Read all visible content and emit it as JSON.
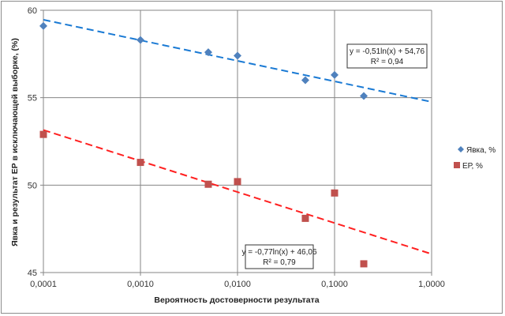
{
  "chart_data": {
    "type": "scatter",
    "xscale": "log",
    "xlim": [
      0.0001,
      1
    ],
    "ylim": [
      45,
      60
    ],
    "xticks": [
      0.0001,
      0.001,
      0.01,
      0.1,
      1
    ],
    "xtick_labels": [
      "0,0001",
      "0,0010",
      "0,0100",
      "0,1000",
      "1,0000"
    ],
    "yticks": [
      45,
      50,
      55,
      60
    ],
    "ytick_labels": [
      "45",
      "50",
      "55",
      "60"
    ],
    "xlabel": "Вероятность достоверности  результата",
    "ylabel": "Явка и результат ЕР в исключающей  выборке, (%)",
    "grid": true,
    "legend_position": "right",
    "series": [
      {
        "name": "Явка, %",
        "marker": "diamond",
        "color": "#4f81bd",
        "x": [
          0.0001,
          0.001,
          0.005,
          0.01,
          0.05,
          0.1,
          0.2
        ],
        "y": [
          59.1,
          58.3,
          57.6,
          57.4,
          56.0,
          56.3,
          55.1
        ],
        "trendline": {
          "type": "log",
          "a": -0.51,
          "b": 54.76,
          "color": "#1a7ad4",
          "equation": "y = -0,51ln(x) + 54,76",
          "r2": "R² = 0,94"
        }
      },
      {
        "name": "ЕР, %",
        "marker": "square",
        "color": "#c0504d",
        "x": [
          0.0001,
          0.001,
          0.005,
          0.01,
          0.05,
          0.1,
          0.2
        ],
        "y": [
          52.9,
          51.3,
          50.05,
          50.2,
          48.1,
          49.55,
          45.5
        ],
        "trendline": {
          "type": "log",
          "a": -0.77,
          "b": 46.06,
          "color": "#ff2020",
          "equation": "y = -0,77ln(x) + 46,06",
          "r2": "R² = 0,79"
        }
      }
    ]
  }
}
